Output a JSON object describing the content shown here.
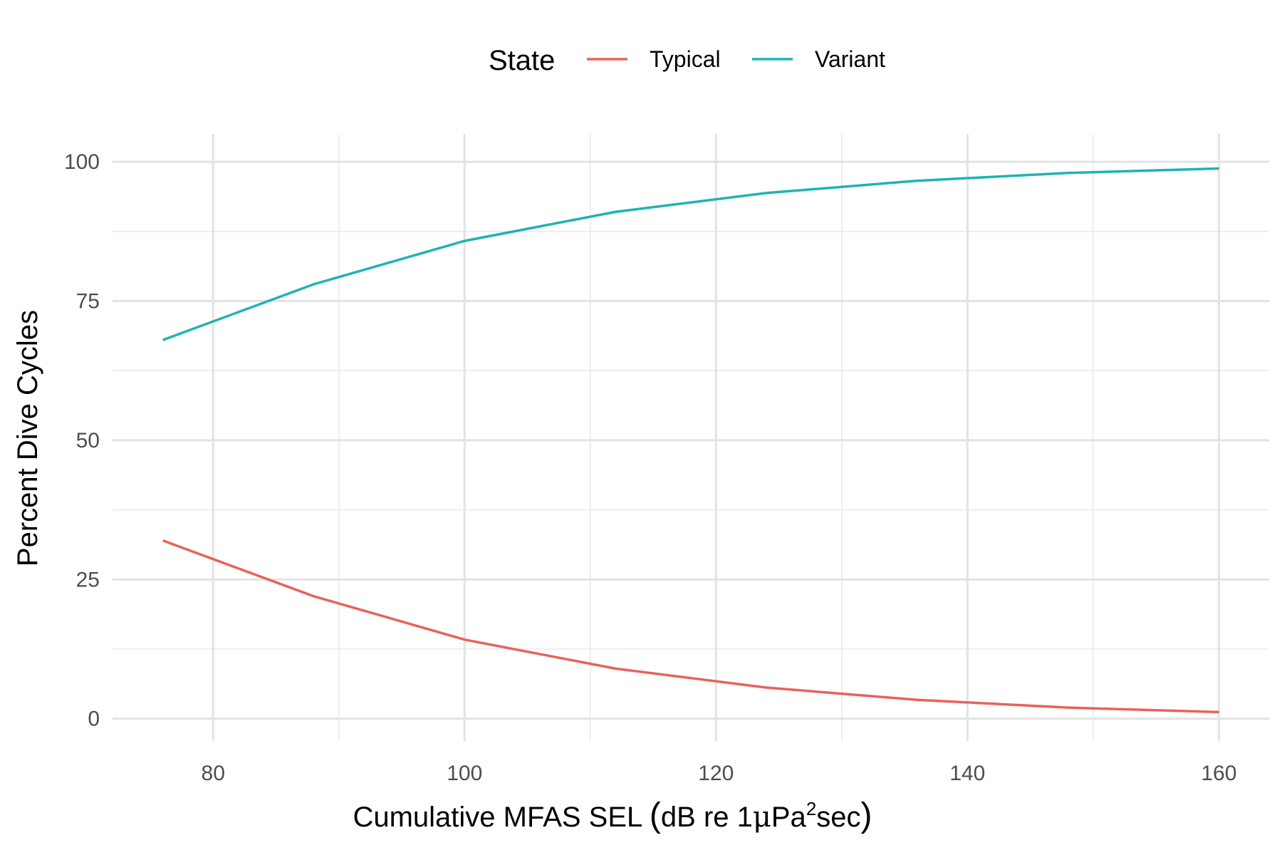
{
  "chart_data": {
    "type": "line",
    "xlabel": "Cumulative MFAS SEL (dB re 1μPa²sec)",
    "xlabel_parts": {
      "main": "Cumulative MFAS SEL ",
      "open": "(",
      "inner": "dB re 1",
      "mu": "μ",
      "pa": "Pa",
      "sup": "2",
      "sec": "sec",
      "close": ")"
    },
    "ylabel": "Percent Dive Cycles",
    "xlim": [
      72,
      164
    ],
    "ylim": [
      -4,
      105
    ],
    "x_ticks": [
      80,
      100,
      120,
      140,
      160
    ],
    "x_tick_labels": [
      "80",
      "100",
      "120",
      "140",
      "160"
    ],
    "x_minor_ticks": [
      90,
      110,
      130,
      150
    ],
    "y_ticks": [
      0,
      25,
      50,
      75,
      100
    ],
    "y_tick_labels": [
      "0",
      "25",
      "50",
      "75",
      "100"
    ],
    "y_minor_ticks": [
      12.5,
      37.5,
      62.5,
      87.5
    ],
    "grid": true,
    "legend": {
      "title": "State",
      "position": "top"
    },
    "x": [
      76,
      88,
      100,
      112,
      124,
      136,
      148,
      160
    ],
    "series": [
      {
        "name": "Typical",
        "color": "#e8625c",
        "values": [
          32,
          22,
          14.2,
          9,
          5.6,
          3.4,
          2.0,
          1.2
        ]
      },
      {
        "name": "Variant",
        "color": "#1fb3b3",
        "values": [
          68,
          78,
          85.8,
          91,
          94.4,
          96.6,
          98.0,
          98.8
        ]
      }
    ]
  }
}
